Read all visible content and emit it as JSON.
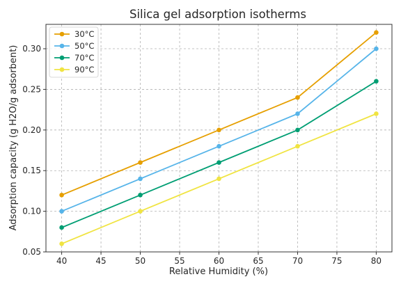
{
  "chart_data": {
    "type": "line",
    "title": "Silica gel adsorption isotherms",
    "xlabel": "Relative Humidity (%)",
    "ylabel": "Adsorption capacity (g H2O/g adsorbent)",
    "x": [
      40,
      50,
      60,
      70,
      80
    ],
    "xlim": [
      38,
      82
    ],
    "ylim": [
      0.05,
      0.33
    ],
    "xticks": [
      40,
      45,
      50,
      55,
      60,
      65,
      70,
      75,
      80
    ],
    "yticks": [
      0.05,
      0.1,
      0.15,
      0.2,
      0.25,
      0.3
    ],
    "grid": true,
    "legend_position": "top-left",
    "series": [
      {
        "name": "30°C",
        "color": "#E69F00",
        "values": [
          0.12,
          0.16,
          0.2,
          0.24,
          0.32
        ]
      },
      {
        "name": "50°C",
        "color": "#56B4E9",
        "values": [
          0.1,
          0.14,
          0.18,
          0.22,
          0.3
        ]
      },
      {
        "name": "70°C",
        "color": "#009E73",
        "values": [
          0.08,
          0.12,
          0.16,
          0.2,
          0.26
        ]
      },
      {
        "name": "90°C",
        "color": "#F0E442",
        "values": [
          0.06,
          0.1,
          0.14,
          0.18,
          0.22
        ]
      }
    ]
  }
}
